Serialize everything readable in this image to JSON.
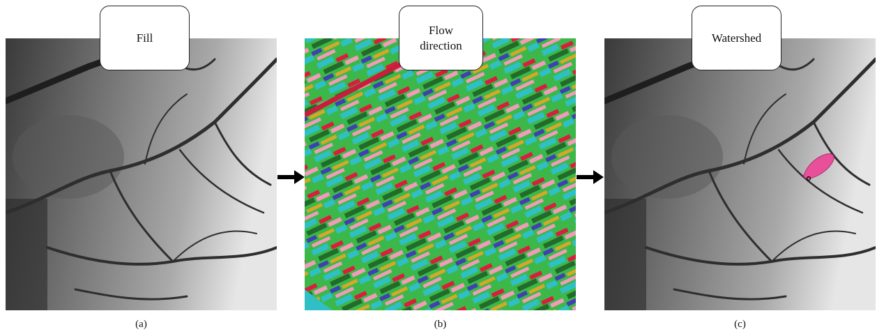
{
  "panels": [
    {
      "label": "Fill",
      "caption": "(a)"
    },
    {
      "label": "Flow direction",
      "caption": "(b)"
    },
    {
      "label": "Watershed",
      "caption": "(c)"
    }
  ]
}
